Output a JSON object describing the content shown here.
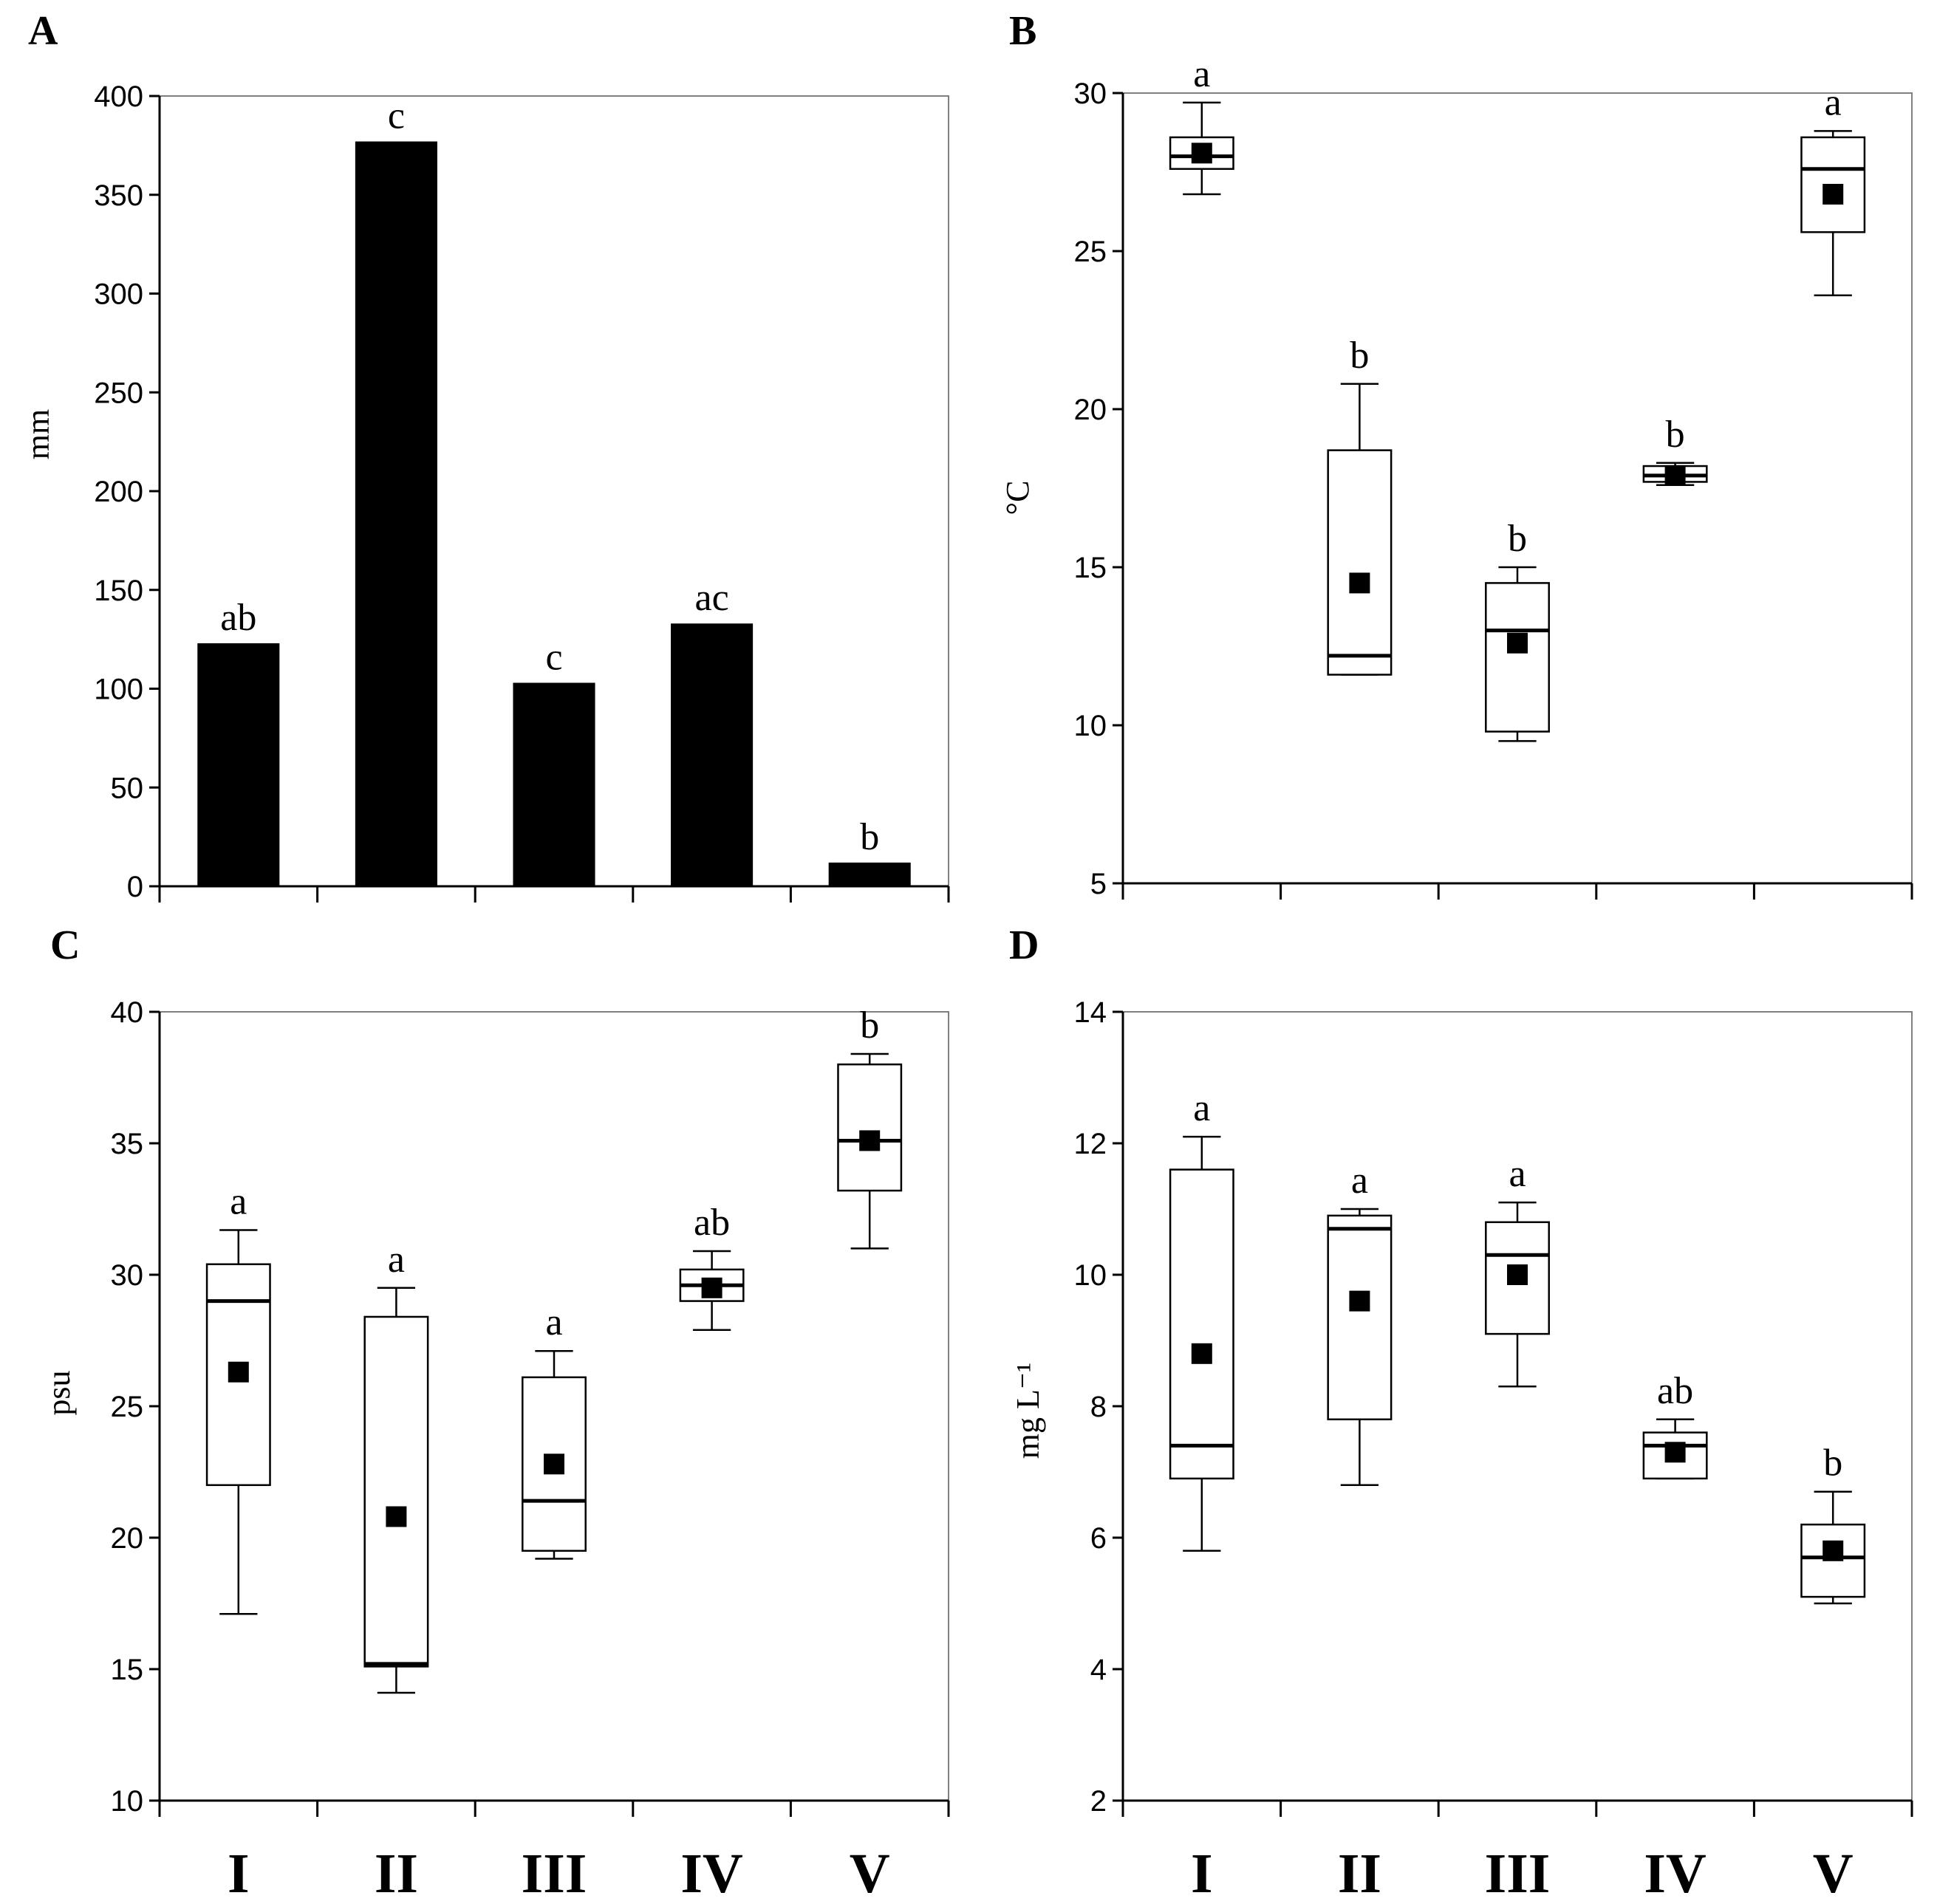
{
  "categories": [
    "I",
    "II",
    "III",
    "IV",
    "V"
  ],
  "chart_data": [
    {
      "panel": "A",
      "type": "bar",
      "ylabel": "mm",
      "ylim": [
        0,
        400
      ],
      "yticks": [
        0,
        50,
        100,
        150,
        200,
        250,
        300,
        350,
        400
      ],
      "categories": [
        "I",
        "II",
        "III",
        "IV",
        "V"
      ],
      "values": [
        123,
        377,
        103,
        133,
        12
      ],
      "letters": [
        "ab",
        "c",
        "c",
        "ac",
        "b"
      ]
    },
    {
      "panel": "B",
      "type": "box",
      "ylabel": "°C",
      "ylim": [
        5,
        30
      ],
      "yticks": [
        5,
        10,
        15,
        20,
        25,
        30
      ],
      "categories": [
        "I",
        "II",
        "III",
        "IV",
        "V"
      ],
      "boxes": [
        {
          "min": 26.8,
          "q1": 27.6,
          "median": 28.0,
          "q3": 28.6,
          "max": 29.7,
          "mean": 28.1
        },
        {
          "min": 11.6,
          "q1": 11.6,
          "median": 12.2,
          "q3": 18.7,
          "max": 20.8,
          "mean": 14.5
        },
        {
          "min": 9.5,
          "q1": 9.8,
          "median": 13.0,
          "q3": 14.5,
          "max": 15.0,
          "mean": 12.6
        },
        {
          "min": 17.6,
          "q1": 17.7,
          "median": 17.9,
          "q3": 18.2,
          "max": 18.3,
          "mean": 17.9
        },
        {
          "min": 23.6,
          "q1": 25.6,
          "median": 27.6,
          "q3": 28.6,
          "max": 28.8,
          "mean": 26.8
        }
      ],
      "letters": [
        "a",
        "b",
        "b",
        "b",
        "a"
      ]
    },
    {
      "panel": "C",
      "type": "box",
      "ylabel": "psu",
      "ylim": [
        10,
        40
      ],
      "yticks": [
        10,
        15,
        20,
        25,
        30,
        35,
        40
      ],
      "categories": [
        "I",
        "II",
        "III",
        "IV",
        "V"
      ],
      "boxes": [
        {
          "min": 17.1,
          "q1": 22.0,
          "median": 29.0,
          "q3": 30.4,
          "max": 31.7,
          "mean": 26.3
        },
        {
          "min": 14.1,
          "q1": 15.1,
          "median": 15.2,
          "q3": 28.4,
          "max": 29.5,
          "mean": 20.8
        },
        {
          "min": 19.2,
          "q1": 19.5,
          "median": 21.4,
          "q3": 26.1,
          "max": 27.1,
          "mean": 22.8
        },
        {
          "min": 27.9,
          "q1": 29.0,
          "median": 29.6,
          "q3": 30.2,
          "max": 30.9,
          "mean": 29.5
        },
        {
          "min": 31.0,
          "q1": 33.2,
          "median": 35.1,
          "q3": 38.0,
          "max": 38.4,
          "mean": 35.1
        }
      ],
      "letters": [
        "a",
        "a",
        "a",
        "ab",
        "b"
      ]
    },
    {
      "panel": "D",
      "type": "box",
      "ylabel": "mg L⁻¹",
      "ylim": [
        2,
        14
      ],
      "yticks": [
        2,
        4,
        6,
        8,
        10,
        12,
        14
      ],
      "categories": [
        "I",
        "II",
        "III",
        "IV",
        "V"
      ],
      "boxes": [
        {
          "min": 5.8,
          "q1": 6.9,
          "median": 7.4,
          "q3": 11.6,
          "max": 12.1,
          "mean": 8.8
        },
        {
          "min": 6.8,
          "q1": 7.8,
          "median": 10.7,
          "q3": 10.9,
          "max": 11.0,
          "mean": 9.6
        },
        {
          "min": 8.3,
          "q1": 9.1,
          "median": 10.3,
          "q3": 10.8,
          "max": 11.1,
          "mean": 10.0
        },
        {
          "min": 6.9,
          "q1": 6.9,
          "median": 7.4,
          "q3": 7.6,
          "max": 7.8,
          "mean": 7.3
        },
        {
          "min": 5.0,
          "q1": 5.1,
          "median": 5.7,
          "q3": 6.2,
          "max": 6.7,
          "mean": 5.8
        }
      ],
      "letters": [
        "a",
        "a",
        "a",
        "ab",
        "b"
      ]
    }
  ]
}
